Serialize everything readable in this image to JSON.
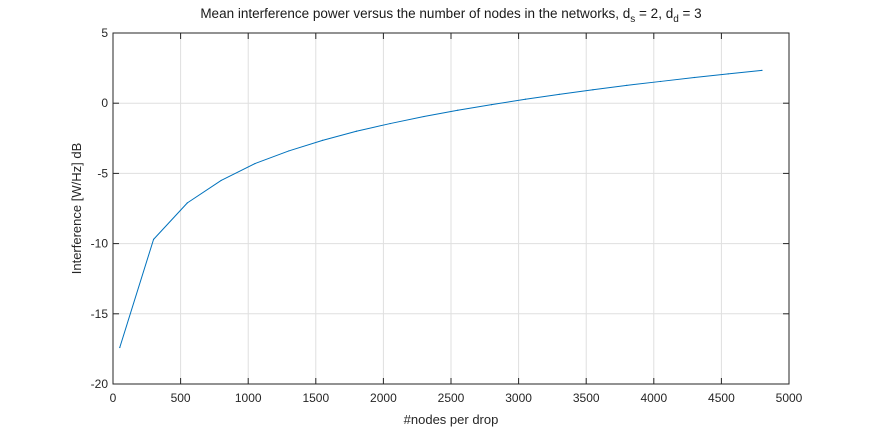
{
  "chart_data": {
    "type": "line",
    "title": {
      "main": "Mean interference power versus the number of nodes in the networks, d",
      "sub1": "s",
      "mid": " = 2, d",
      "sub2": "d",
      "end": " = 3"
    },
    "xlabel": "#nodes per drop",
    "ylabel": "Interference [W/Hz] dB",
    "xlim": [
      0,
      5000
    ],
    "ylim": [
      -20,
      5
    ],
    "xticks": [
      0,
      500,
      1000,
      1500,
      2000,
      2500,
      3000,
      3500,
      4000,
      4500,
      5000
    ],
    "yticks": [
      -20,
      -15,
      -10,
      -5,
      0,
      5
    ],
    "grid": true,
    "series": [
      {
        "color": "#0072BD",
        "x": [
          50,
          300,
          550,
          800,
          1050,
          1300,
          1550,
          1800,
          2050,
          2300,
          2550,
          2800,
          3050,
          3300,
          3550,
          3800,
          4050,
          4300,
          4550,
          4800
        ],
        "y": [
          -17.4,
          -9.7,
          -7.1,
          -5.5,
          -4.3,
          -3.4,
          -2.65,
          -2.0,
          -1.45,
          -0.95,
          -0.5,
          -0.1,
          0.28,
          0.63,
          0.96,
          1.27,
          1.55,
          1.83,
          2.09,
          2.34
        ]
      }
    ]
  }
}
